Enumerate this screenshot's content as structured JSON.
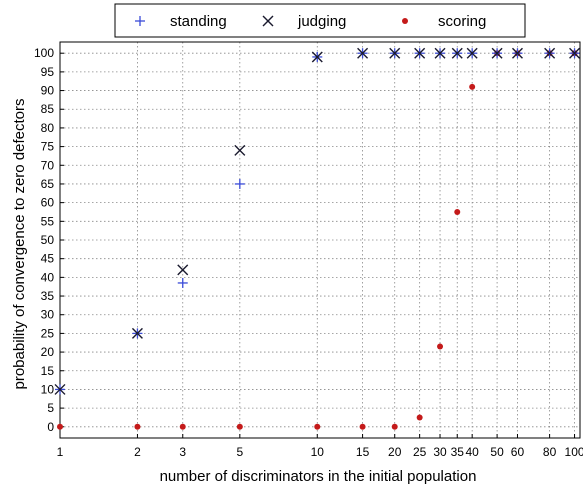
{
  "chart_data": {
    "type": "scatter",
    "title": "",
    "xlabel": "number of discriminators in the initial population",
    "ylabel": "probability of convergence to zero defectors",
    "x_scale": "log",
    "xlim": [
      1,
      105
    ],
    "ylim": [
      -3,
      103
    ],
    "x_ticks": [
      1,
      2,
      3,
      5,
      10,
      15,
      20,
      25,
      30,
      35,
      40,
      50,
      60,
      80,
      100
    ],
    "x_tick_labels": [
      "1",
      "2",
      "3",
      "5",
      "10",
      "15",
      "20",
      "25",
      "30",
      "35",
      "40",
      "50",
      "60",
      "80",
      "100"
    ],
    "y_ticks": [
      0,
      5,
      10,
      15,
      20,
      25,
      30,
      35,
      40,
      45,
      50,
      55,
      60,
      65,
      70,
      75,
      80,
      85,
      90,
      95,
      100
    ],
    "grid": true,
    "legend_position": "top",
    "series": [
      {
        "name": "standing",
        "marker": "plus",
        "color": "#3a4bd8",
        "x": [
          1,
          2,
          3,
          5,
          10,
          15,
          20,
          25,
          30,
          35,
          40,
          50,
          60,
          80,
          100
        ],
        "y": [
          10,
          25,
          38.5,
          65,
          99,
          100,
          100,
          100,
          100,
          100,
          100,
          100,
          100,
          100,
          100
        ]
      },
      {
        "name": "judging",
        "marker": "x",
        "color": "#1a1a2e",
        "x": [
          1,
          2,
          3,
          5,
          10,
          15,
          20,
          25,
          30,
          35,
          40,
          50,
          60,
          80,
          100
        ],
        "y": [
          10,
          25,
          42,
          74,
          99,
          100,
          100,
          100,
          100,
          100,
          100,
          100,
          100,
          100,
          100
        ]
      },
      {
        "name": "scoring",
        "marker": "dot",
        "color": "#c41a1a",
        "x": [
          1,
          2,
          3,
          5,
          10,
          15,
          20,
          25,
          30,
          35,
          40,
          50,
          60,
          80,
          100
        ],
        "y": [
          0,
          0,
          0,
          0,
          0,
          0,
          0,
          2.5,
          21.5,
          57.5,
          91,
          100,
          100,
          100,
          100
        ]
      }
    ]
  }
}
